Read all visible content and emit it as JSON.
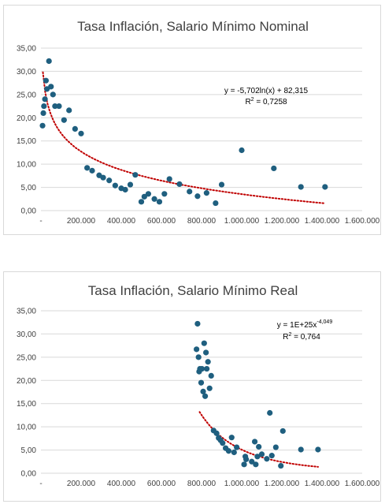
{
  "chart_data": [
    {
      "type": "scatter",
      "title": "Tasa Inflación, Salario Mínimo Nominal",
      "xlim": [
        0,
        1600000
      ],
      "ylim": [
        0,
        35
      ],
      "x_ticks": [
        "-",
        "200.000",
        "400.000",
        "600.000",
        "800.000",
        "1.000.000",
        "1.200.000",
        "1.400.000",
        "1.600.000"
      ],
      "y_ticks": [
        "0,00",
        "5,00",
        "10,00",
        "15,00",
        "20,00",
        "25,00",
        "30,00",
        "35,00"
      ],
      "marker_color": "#1f5f7f",
      "trend_color": "#c00000",
      "trendline": {
        "type": "log",
        "a": -5.702,
        "b": 82.315,
        "x_start": 10000,
        "x_end": 1410000
      },
      "equation_main": "y = -5,702ln(x) + 82,315",
      "equation_sup": "",
      "r2_label": "R",
      "r2_value": " = 0,7258",
      "points": [
        [
          8000,
          18.3
        ],
        [
          12000,
          21.0
        ],
        [
          15000,
          22.5
        ],
        [
          20000,
          24.0
        ],
        [
          25000,
          28.0
        ],
        [
          30000,
          26.2
        ],
        [
          40000,
          32.2
        ],
        [
          50000,
          26.7
        ],
        [
          60000,
          25.0
        ],
        [
          70000,
          22.5
        ],
        [
          90000,
          22.5
        ],
        [
          115000,
          19.5
        ],
        [
          140000,
          21.6
        ],
        [
          170000,
          17.6
        ],
        [
          200000,
          16.6
        ],
        [
          230000,
          9.2
        ],
        [
          255000,
          8.6
        ],
        [
          290000,
          7.6
        ],
        [
          310000,
          7.1
        ],
        [
          340000,
          6.5
        ],
        [
          370000,
          5.4
        ],
        [
          400000,
          4.8
        ],
        [
          420000,
          4.5
        ],
        [
          445000,
          5.6
        ],
        [
          470000,
          7.7
        ],
        [
          500000,
          1.9
        ],
        [
          515000,
          3.0
        ],
        [
          535000,
          3.6
        ],
        [
          565000,
          2.5
        ],
        [
          590000,
          1.9
        ],
        [
          615000,
          3.6
        ],
        [
          640000,
          6.8
        ],
        [
          690000,
          5.7
        ],
        [
          740000,
          4.1
        ],
        [
          780000,
          3.1
        ],
        [
          825000,
          3.8
        ],
        [
          870000,
          1.6
        ],
        [
          900000,
          5.6
        ],
        [
          1000000,
          13.0
        ],
        [
          1160000,
          9.1
        ],
        [
          1295000,
          5.1
        ],
        [
          1415000,
          5.1
        ]
      ]
    },
    {
      "type": "scatter",
      "title": "Tasa Inflación, Salario Mínimo Real",
      "xlim": [
        0,
        1600000
      ],
      "ylim": [
        0,
        35
      ],
      "x_ticks": [
        "-",
        "200.000",
        "400.000",
        "600.000",
        "800.000",
        "1.000.000",
        "1.200.000",
        "1.400.000",
        "1.600.000"
      ],
      "y_ticks": [
        "0,00",
        "5,00",
        "10,00",
        "15,00",
        "20,00",
        "25,00",
        "30,00",
        "35,00"
      ],
      "marker_color": "#1f5f7f",
      "trend_color": "#c00000",
      "trendline": {
        "type": "power",
        "a": 1e+25,
        "b": -4.049,
        "x_start": 790000,
        "x_end": 1380000
      },
      "equation_main": "y = 1E+25x",
      "equation_sup": "-4,049",
      "r2_label": "R",
      "r2_value": " = 0,764",
      "points": [
        [
          775000,
          26.7
        ],
        [
          780000,
          32.2
        ],
        [
          785000,
          25.0
        ],
        [
          788000,
          21.9
        ],
        [
          792000,
          22.5
        ],
        [
          798000,
          19.5
        ],
        [
          802000,
          22.5
        ],
        [
          808000,
          17.6
        ],
        [
          813000,
          28.0
        ],
        [
          818000,
          16.6
        ],
        [
          822000,
          26.0
        ],
        [
          826000,
          22.5
        ],
        [
          832000,
          24.0
        ],
        [
          840000,
          18.3
        ],
        [
          848000,
          21.0
        ],
        [
          860000,
          9.2
        ],
        [
          875000,
          8.6
        ],
        [
          885000,
          7.6
        ],
        [
          895000,
          7.1
        ],
        [
          905000,
          6.5
        ],
        [
          920000,
          5.4
        ],
        [
          935000,
          4.8
        ],
        [
          950000,
          7.7
        ],
        [
          962000,
          4.5
        ],
        [
          975000,
          5.6
        ],
        [
          1012000,
          1.9
        ],
        [
          1018000,
          3.6
        ],
        [
          1022000,
          3.0
        ],
        [
          1050000,
          2.5
        ],
        [
          1065000,
          6.8
        ],
        [
          1070000,
          1.9
        ],
        [
          1078000,
          3.6
        ],
        [
          1085000,
          5.7
        ],
        [
          1100000,
          4.1
        ],
        [
          1125000,
          3.1
        ],
        [
          1140000,
          13.0
        ],
        [
          1150000,
          3.8
        ],
        [
          1170000,
          5.6
        ],
        [
          1195000,
          1.6
        ],
        [
          1205000,
          9.1
        ],
        [
          1295000,
          5.1
        ],
        [
          1380000,
          5.1
        ]
      ]
    }
  ]
}
